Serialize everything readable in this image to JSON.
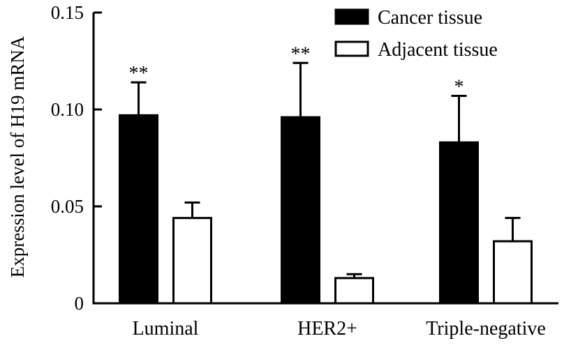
{
  "chart_data": {
    "type": "bar",
    "ylabel": "Expression level of H19 mRNA",
    "xlabel": "",
    "ylim": [
      0,
      0.15
    ],
    "yticks": [
      "0",
      "0.05",
      "0.10",
      "0.15"
    ],
    "ytick_values": [
      0,
      0.05,
      0.1,
      0.15
    ],
    "categories": [
      "Luminal",
      "HER2+",
      "Triple-negative"
    ],
    "legend_position": "top-right",
    "series": [
      {
        "name": "Cancer tissue",
        "color": "#000000",
        "values": [
          0.097,
          0.096,
          0.083
        ],
        "errors": [
          0.017,
          0.028,
          0.024
        ]
      },
      {
        "name": "Adjacent tissue",
        "color": "#ffffff",
        "values": [
          0.044,
          0.013,
          0.032
        ],
        "errors": [
          0.008,
          0.002,
          0.012
        ]
      }
    ],
    "annotations": [
      "**",
      "**",
      "*"
    ],
    "grid": false
  }
}
